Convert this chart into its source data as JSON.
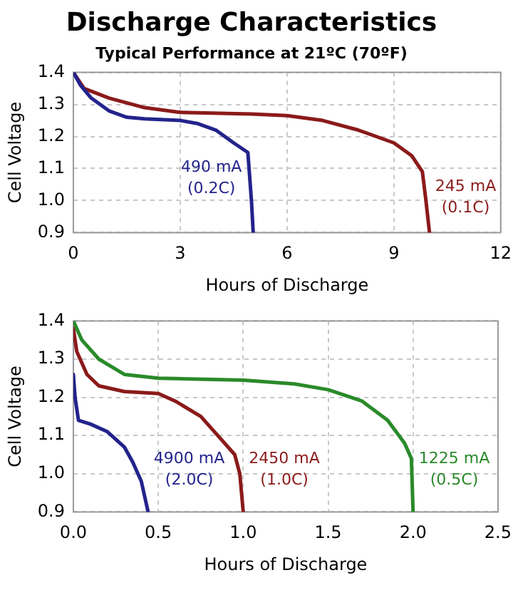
{
  "chart_data": [
    {
      "type": "line",
      "title": "Discharge Characteristics",
      "subtitle": "Typical Performance at 21ºC (70ºF)",
      "xlabel": "Hours of Discharge",
      "ylabel": "Cell Voltage",
      "xlim": [
        0,
        12
      ],
      "xticks": [
        0,
        3,
        6,
        9,
        12
      ],
      "ylim": [
        0.9,
        1.4
      ],
      "yticks": [
        0.9,
        {
          "value": 1,
          "label": "1.0"
        },
        1.1,
        1.2,
        1.3,
        1.4
      ],
      "grid": true,
      "legend": false,
      "marker": "none",
      "line_style": "solid",
      "series": [
        {
          "name": "490 mA\n(0.2C)",
          "color": "#23238c",
          "x": [
            0,
            0.2,
            0.5,
            1,
            1.5,
            2,
            3,
            3.5,
            4,
            4.5,
            4.9,
            5.0,
            5.05
          ],
          "values": [
            1.4,
            1.36,
            1.32,
            1.28,
            1.26,
            1.255,
            1.25,
            1.24,
            1.22,
            1.18,
            1.15,
            1.0,
            0.9
          ]
        },
        {
          "name": "245 mA\n(0.1C)",
          "color": "#8b1a1a",
          "x": [
            0,
            0.3,
            1,
            2,
            3,
            5,
            6,
            7,
            8,
            9,
            9.5,
            9.8,
            9.9,
            10
          ],
          "values": [
            1.4,
            1.35,
            1.32,
            1.29,
            1.275,
            1.27,
            1.265,
            1.25,
            1.22,
            1.18,
            1.14,
            1.09,
            1.0,
            0.9
          ]
        }
      ]
    },
    {
      "type": "line",
      "xlabel": "Hours of Discharge",
      "ylabel": "Cell Voltage",
      "xlim": [
        0,
        2.5
      ],
      "xticks": [
        {
          "value": 0,
          "label": "0.0"
        },
        0.5,
        {
          "value": 1,
          "label": "1.0"
        },
        1.5,
        {
          "value": 2,
          "label": "2.0"
        },
        2.5
      ],
      "ylim": [
        0.9,
        1.4
      ],
      "yticks": [
        0.9,
        {
          "value": 1,
          "label": "1.0"
        },
        1.1,
        1.2,
        1.3,
        1.4
      ],
      "grid": true,
      "legend": false,
      "marker": "none",
      "line_style": "solid",
      "series": [
        {
          "name": "1225 mA\n(0.5C)",
          "color": "#2a8a2a",
          "x": [
            0,
            0.05,
            0.15,
            0.3,
            0.5,
            1,
            1.3,
            1.5,
            1.7,
            1.85,
            1.95,
            1.99,
            2.0
          ],
          "values": [
            1.4,
            1.35,
            1.3,
            1.26,
            1.25,
            1.245,
            1.235,
            1.22,
            1.19,
            1.14,
            1.08,
            1.04,
            0.9
          ]
        },
        {
          "name": "2450 mA\n(1.0C)",
          "color": "#8b1a1a",
          "x": [
            0,
            0.02,
            0.08,
            0.15,
            0.3,
            0.5,
            0.6,
            0.75,
            0.85,
            0.95,
            0.98,
            1.0
          ],
          "values": [
            1.38,
            1.32,
            1.26,
            1.23,
            1.215,
            1.21,
            1.19,
            1.15,
            1.1,
            1.05,
            1.0,
            0.9
          ]
        },
        {
          "name": "4900 mA\n(2.0C)",
          "color": "#23238c",
          "x": [
            0,
            0.01,
            0.03,
            0.1,
            0.2,
            0.3,
            0.35,
            0.4,
            0.44
          ],
          "values": [
            1.26,
            1.2,
            1.14,
            1.13,
            1.11,
            1.07,
            1.03,
            0.98,
            0.9
          ]
        }
      ]
    }
  ]
}
